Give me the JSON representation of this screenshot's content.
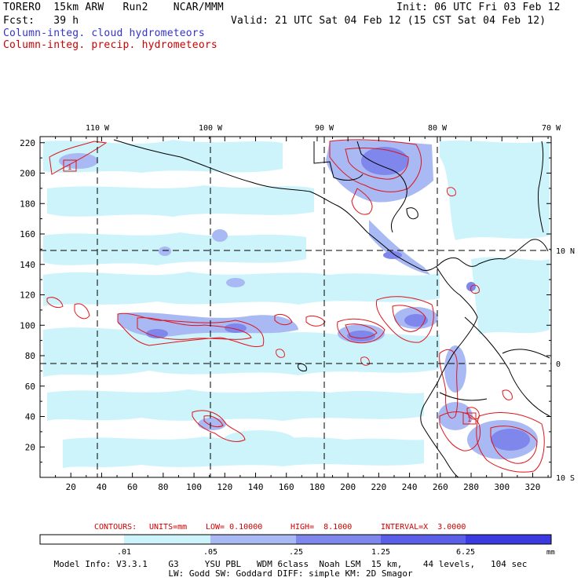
{
  "header": {
    "model": "TORERO  15km ARW   Run2    NCAR/MMM",
    "forecast": "Fcst:   39 h",
    "init": "Init: 06 UTC Fri 03 Feb 12",
    "valid": "Valid: 21 UTC Sat 04 Feb 12 (15 CST Sat 04 Feb 12)",
    "field_cloud": "Column-integ. cloud hydrometeors",
    "field_precip": "Column-integ. precip. hydrometeors"
  },
  "map": {
    "lon_labels": [
      "110 W",
      "100 W",
      "90 W",
      "80 W",
      "70 W"
    ],
    "lat_labels": [
      "10 N",
      "0",
      "10 S"
    ],
    "x_ticks": [
      "20",
      "40",
      "60",
      "80",
      "100",
      "120",
      "140",
      "160",
      "180",
      "200",
      "220",
      "240",
      "260",
      "280",
      "300",
      "320"
    ],
    "y_ticks": [
      "220",
      "200",
      "180",
      "160",
      "140",
      "120",
      "100",
      "80",
      "60",
      "40",
      "20"
    ],
    "box_labels": [
      "1",
      "1"
    ],
    "colors": {
      "cloud_light": "#cdf3fb",
      "cloud_mid": "#a9b9f3",
      "cloud_deep": "#7f86ec",
      "precip_contour": "#e0141a",
      "coast": "#000000"
    }
  },
  "contours": {
    "label": "CONTOURS:",
    "units": "UNITS=mm",
    "low": "LOW= 0.10000",
    "high": "HIGH=  8.1000",
    "interval": "INTERVAL=X  3.0000"
  },
  "colorbar": {
    "labels": [
      ".01",
      ".05",
      ".25",
      "1.25",
      "6.25"
    ],
    "unit": "mm",
    "colors": [
      "#ffffff",
      "#cdf3fb",
      "#a9b9f3",
      "#7f86ec",
      "#5b5ee6",
      "#3a3ae0",
      "#1f1fe0"
    ]
  },
  "footer": {
    "line1": "Model Info: V3.3.1    G3     YSU PBL   WDM 6class  Noah LSM  15 km,    44 levels,   104 sec",
    "line2": "LW: Godd SW: Goddard DIFF: simple KM: 2D Smagor"
  }
}
